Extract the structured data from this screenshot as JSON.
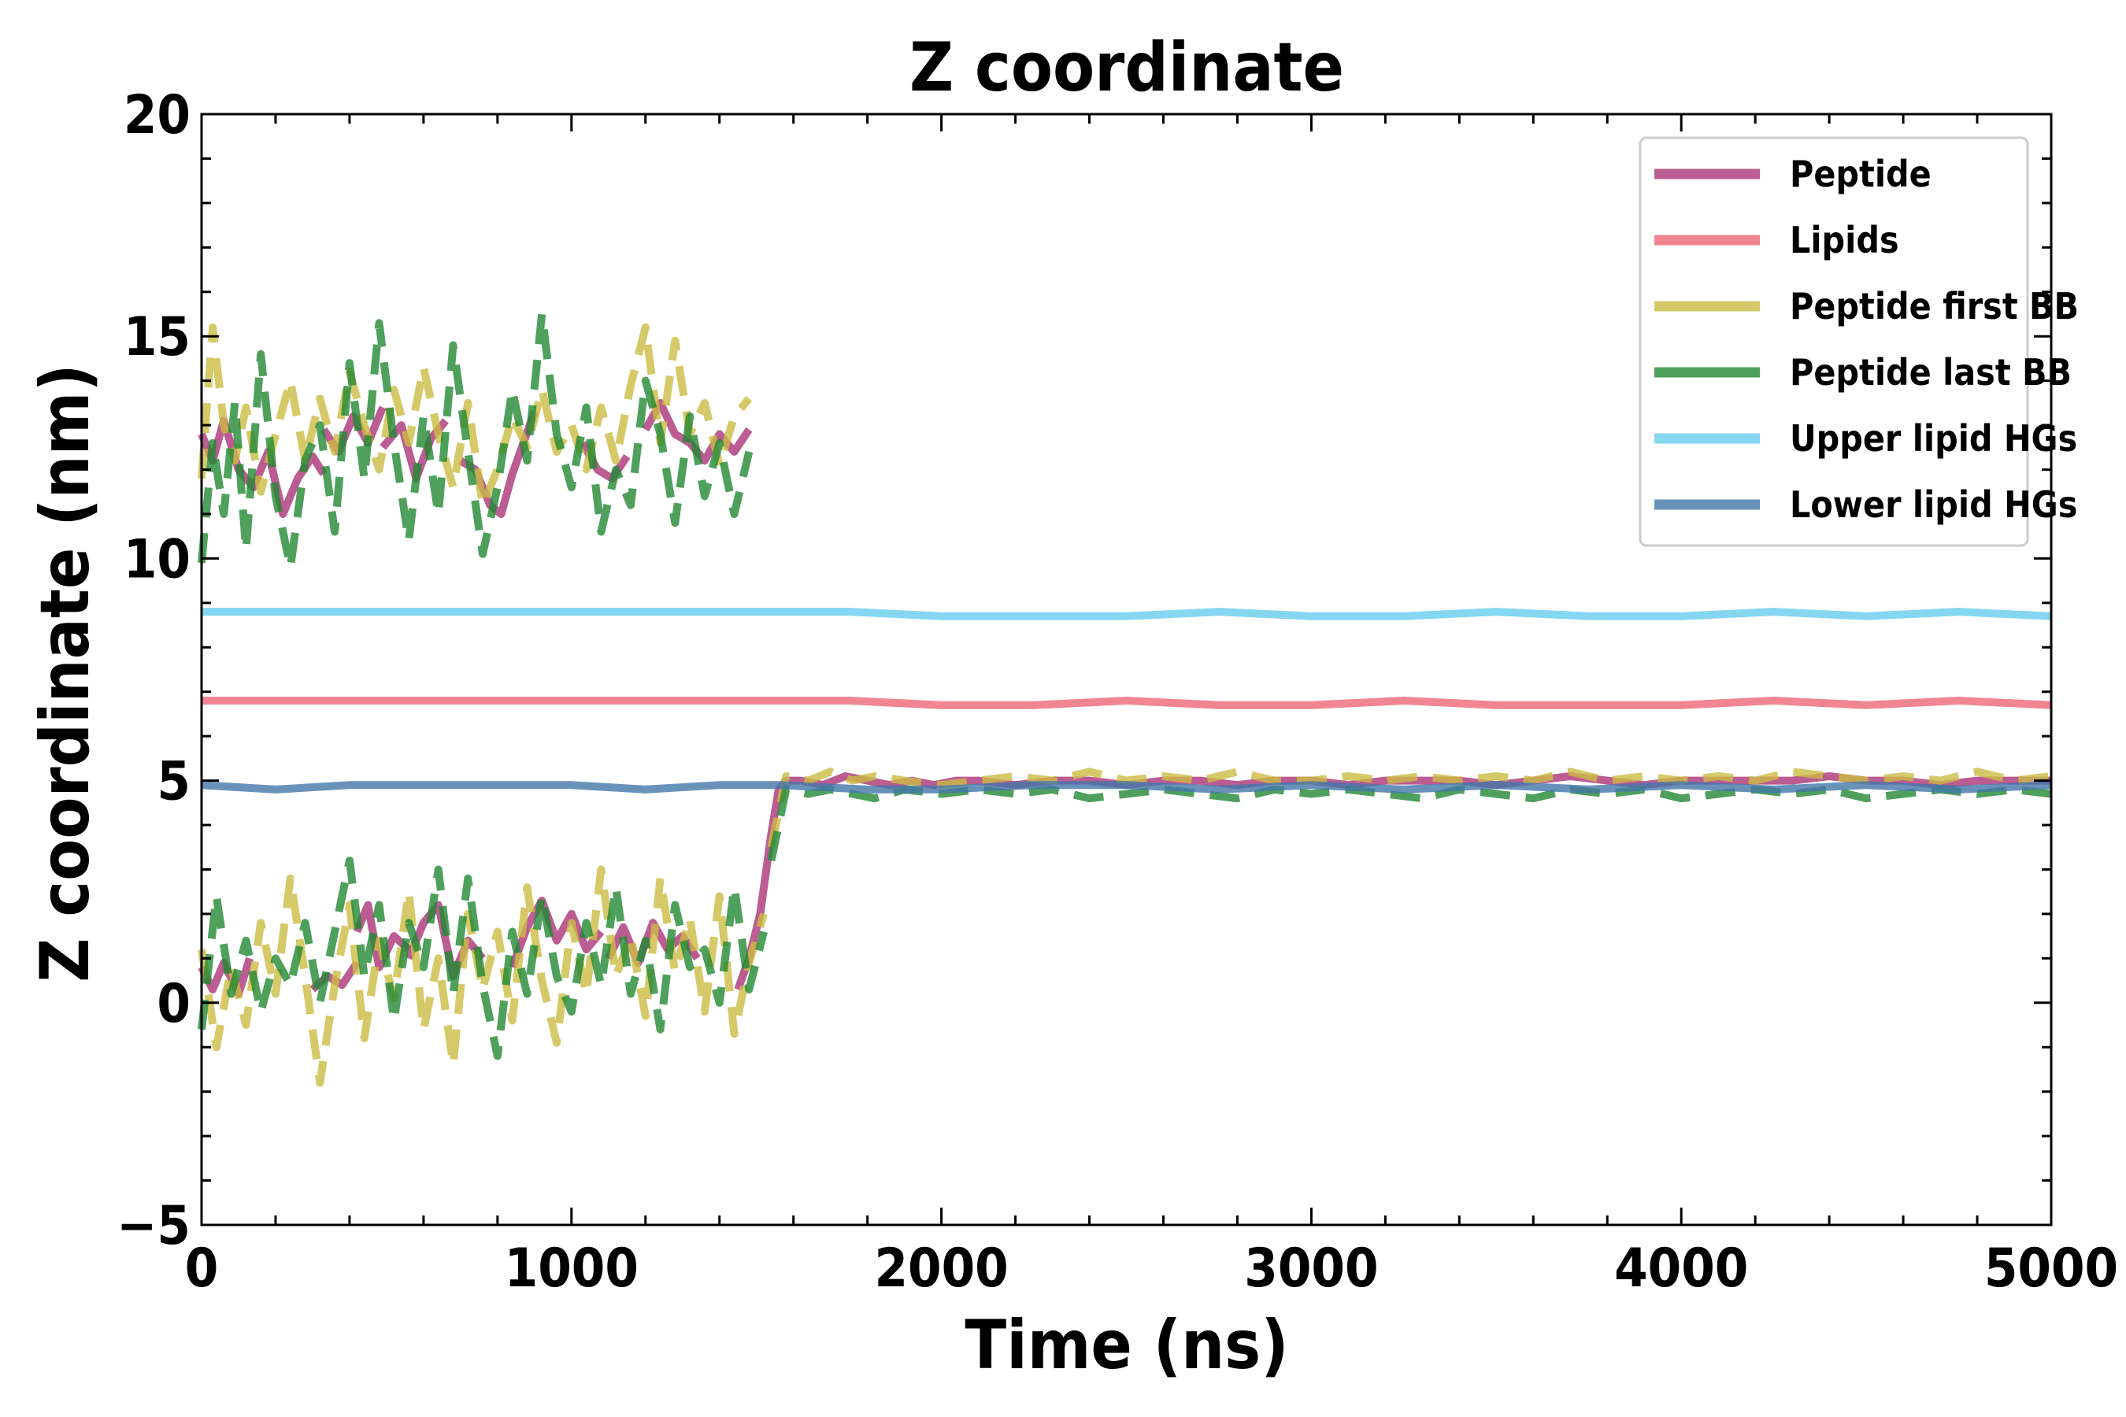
{
  "chart_data": {
    "type": "line",
    "title": "Z coordinate",
    "xlabel": "Time (ns)",
    "ylabel": "Z coordinate (nm)",
    "xlim": [
      0,
      5000
    ],
    "ylim": [
      -5,
      20
    ],
    "xticks": [
      0,
      1000,
      2000,
      3000,
      4000,
      5000
    ],
    "yticks": [
      -5,
      0,
      5,
      10,
      15,
      20
    ],
    "xtick_labels": [
      "0",
      "1000",
      "2000",
      "3000",
      "4000",
      "5000"
    ],
    "ytick_labels": [
      "−5",
      "0",
      "5",
      "10",
      "15",
      "20"
    ],
    "grid": false,
    "legend_position": "top-right",
    "series": [
      {
        "name": "Peptide",
        "color": "#aa3377",
        "style": "solid",
        "segments": [
          {
            "x": [
              0,
              30,
              60,
              100,
              140,
              180,
              220,
              260,
              300,
              330
            ],
            "y": [
              12.8,
              12.2,
              13.1,
              12.0,
              11.6,
              12.4,
              11.0,
              11.8,
              12.3,
              11.9
            ]
          },
          {
            "x": [
              330,
              370,
              410,
              450,
              490
            ],
            "y": [
              12.9,
              12.4,
              13.2,
              12.6,
              13.4
            ]
          },
          {
            "x": [
              490,
              540,
              580,
              620,
              660
            ],
            "y": [
              12.5,
              13.0,
              11.8,
              12.7,
              13.1
            ]
          },
          {
            "x": [
              700,
              740,
              780,
              810,
              840,
              870,
              900
            ],
            "y": [
              12.2,
              12.0,
              11.2,
              11.0,
              11.9,
              12.6,
              13.3
            ]
          },
          {
            "x": [
              1030,
              1070,
              1110,
              1150
            ],
            "y": [
              12.6,
              12.0,
              11.8,
              12.3
            ]
          },
          {
            "x": [
              1200,
              1240,
              1280,
              1320,
              1360,
              1400,
              1440,
              1480
            ],
            "y": [
              12.9,
              13.5,
              12.8,
              12.6,
              12.2,
              12.8,
              12.4,
              12.9
            ]
          },
          {
            "x": [
              0,
              30,
              60,
              100,
              130
            ],
            "y": [
              0.8,
              0.3,
              0.9,
              0.2,
              1.0
            ]
          },
          {
            "x": [
              300,
              340,
              380,
              420
            ],
            "y": [
              0.3,
              0.6,
              0.4,
              0.9
            ]
          },
          {
            "x": [
              420,
              450,
              480,
              520,
              560
            ],
            "y": [
              1.6,
              2.2,
              0.8,
              1.5,
              1.2
            ]
          },
          {
            "x": [
              560,
              600,
              640,
              680,
              720,
              760
            ],
            "y": [
              1.0,
              1.8,
              2.2,
              0.6,
              1.4,
              1.0
            ]
          },
          {
            "x": [
              840,
              880,
              920,
              960,
              1000,
              1040,
              1080
            ],
            "y": [
              0.8,
              1.7,
              2.3,
              1.4,
              2.0,
              1.2,
              1.6
            ]
          },
          {
            "x": [
              1100,
              1140,
              1180,
              1220,
              1260,
              1300,
              1340
            ],
            "y": [
              1.0,
              1.7,
              0.9,
              1.8,
              1.2,
              1.5,
              1.0
            ]
          },
          {
            "x": [
              1450,
              1480,
              1510,
              1540,
              1560,
              1580,
              1620,
              1680,
              1740,
              1800,
              1860,
              1920,
              1980,
              2040,
              2100,
              2200,
              2300,
              2400,
              2500,
              2600,
              2700,
              2800,
              2900,
              3000,
              3100,
              3200,
              3300,
              3400,
              3500,
              3600,
              3700,
              3800,
              3900,
              4000,
              4100,
              4200,
              4300,
              4400,
              4500,
              4600,
              4700,
              4800,
              4900,
              5000
            ],
            "y": [
              0.3,
              1.0,
              2.0,
              3.8,
              4.8,
              5.0,
              5.0,
              4.9,
              5.1,
              5.0,
              4.9,
              5.0,
              4.9,
              5.0,
              5.0,
              4.9,
              5.0,
              5.0,
              4.9,
              5.0,
              5.0,
              4.9,
              5.0,
              5.0,
              4.9,
              5.0,
              5.0,
              5.0,
              4.9,
              5.0,
              5.1,
              5.0,
              4.9,
              5.0,
              5.0,
              5.0,
              5.0,
              5.1,
              5.0,
              5.0,
              4.9,
              5.0,
              5.0,
              5.0
            ]
          }
        ]
      },
      {
        "name": "Lipids",
        "color": "#ee6677",
        "style": "solid",
        "segments": [
          {
            "x": [
              0,
              250,
              500,
              750,
              1000,
              1250,
              1500,
              1750,
              2000,
              2250,
              2500,
              2750,
              3000,
              3250,
              3500,
              3750,
              4000,
              4250,
              4500,
              4750,
              5000
            ],
            "y": [
              6.8,
              6.8,
              6.8,
              6.8,
              6.8,
              6.8,
              6.8,
              6.8,
              6.7,
              6.7,
              6.8,
              6.7,
              6.7,
              6.8,
              6.7,
              6.7,
              6.7,
              6.8,
              6.7,
              6.8,
              6.7
            ]
          }
        ]
      },
      {
        "name": "Peptide first BB",
        "color": "#ccbb44",
        "style": "dashed",
        "segments": [
          {
            "x": [
              0,
              30,
              60,
              90,
              120,
              160,
              200,
              240,
              280,
              320,
              360,
              400,
              440,
              480,
              520,
              560,
              600,
              640,
              680,
              720,
              760,
              800,
              840,
              880,
              920,
              960,
              1000,
              1040,
              1080,
              1120,
              1160,
              1200,
              1240,
              1280,
              1320,
              1360,
              1400,
              1440,
              1480
            ],
            "y": [
              11.8,
              15.2,
              13.0,
              12.2,
              13.4,
              11.5,
              12.8,
              14.0,
              12.2,
              13.6,
              12.4,
              14.2,
              13.0,
              12.0,
              13.8,
              12.6,
              14.3,
              12.8,
              11.6,
              13.5,
              11.2,
              12.0,
              13.2,
              12.5,
              13.8,
              12.4,
              13.0,
              12.0,
              13.4,
              12.2,
              13.9,
              15.2,
              12.6,
              14.9,
              12.8,
              13.5,
              12.1,
              13.2,
              13.6
            ]
          },
          {
            "x": [
              0,
              40,
              80,
              120,
              160,
              200,
              240,
              280,
              320,
              360,
              400,
              440,
              480,
              520,
              560,
              600,
              640,
              680,
              720,
              760,
              800,
              840,
              880,
              920,
              960,
              1000,
              1040,
              1080,
              1120,
              1160,
              1200,
              1240,
              1280,
              1320,
              1360,
              1400,
              1440,
              1480,
              1520
            ],
            "y": [
              1.2,
              -1.0,
              0.8,
              -0.5,
              1.8,
              0.2,
              2.8,
              0.6,
              -1.8,
              0.4,
              2.2,
              -0.8,
              1.4,
              0.1,
              2.5,
              -0.6,
              1.0,
              -1.4,
              2.0,
              0.3,
              1.6,
              -0.4,
              2.6,
              0.5,
              -0.9,
              1.8,
              0.2,
              3.0,
              0.6,
              1.5,
              -0.3,
              2.8,
              0.7,
              1.9,
              -0.2,
              2.4,
              -0.7,
              0.9,
              2.0
            ]
          },
          {
            "x": [
              1540,
              1580,
              1640,
              1700,
              1760,
              1820,
              1900,
              2000,
              2100,
              2200,
              2300,
              2400,
              2500,
              2600,
              2700,
              2800,
              2900,
              3000,
              3100,
              3200,
              3300,
              3400,
              3500,
              3600,
              3700,
              3800,
              3900,
              4000,
              4100,
              4200,
              4300,
              4400,
              4500,
              4600,
              4700,
              4800,
              4900,
              5000
            ],
            "y": [
              3.5,
              5.1,
              5.0,
              5.2,
              5.0,
              5.1,
              5.0,
              4.9,
              5.0,
              5.1,
              5.0,
              5.2,
              5.0,
              5.1,
              5.0,
              5.2,
              5.0,
              5.0,
              5.1,
              5.0,
              5.1,
              5.0,
              5.1,
              5.0,
              5.2,
              5.0,
              5.1,
              5.0,
              5.1,
              5.0,
              5.2,
              5.1,
              5.0,
              5.1,
              5.0,
              5.2,
              5.0,
              5.1
            ]
          }
        ]
      },
      {
        "name": "Peptide last BB",
        "color": "#228833",
        "style": "dashed",
        "segments": [
          {
            "x": [
              0,
              30,
              60,
              90,
              120,
              160,
              200,
              240,
              280,
              320,
              360,
              400,
              440,
              480,
              520,
              560,
              600,
              640,
              680,
              720,
              760,
              800,
              840,
              880,
              920,
              960,
              1000,
              1040,
              1080,
              1120,
              1160,
              1200,
              1240,
              1280,
              1320,
              1360,
              1400,
              1440,
              1480
            ],
            "y": [
              9.9,
              12.6,
              11.0,
              13.5,
              10.2,
              14.6,
              11.4,
              9.8,
              12.2,
              13.0,
              10.6,
              14.4,
              11.8,
              15.3,
              12.6,
              10.4,
              13.2,
              11.0,
              14.8,
              12.4,
              10.1,
              11.6,
              13.8,
              12.2,
              15.5,
              12.8,
              11.6,
              13.4,
              10.6,
              12.0,
              11.2,
              14.0,
              12.8,
              10.8,
              13.2,
              11.4,
              12.6,
              11.0,
              12.4
            ]
          },
          {
            "x": [
              0,
              40,
              80,
              120,
              160,
              200,
              240,
              280,
              320,
              360,
              400,
              440,
              480,
              520,
              560,
              600,
              640,
              680,
              720,
              760,
              800,
              840,
              880,
              920,
              960,
              1000,
              1040,
              1080,
              1120,
              1160,
              1200,
              1240,
              1280,
              1320,
              1360,
              1400,
              1440,
              1480,
              1520
            ],
            "y": [
              -0.6,
              2.4,
              0.2,
              1.4,
              -0.2,
              1.0,
              0.4,
              1.8,
              0.0,
              1.6,
              3.2,
              0.6,
              2.2,
              -0.4,
              1.8,
              0.8,
              3.0,
              0.2,
              2.8,
              0.4,
              -1.2,
              1.6,
              0.2,
              2.4,
              0.6,
              -0.2,
              1.8,
              0.4,
              2.6,
              0.2,
              1.4,
              -0.6,
              2.2,
              0.8,
              1.2,
              0.0,
              2.6,
              0.3,
              1.6
            ]
          },
          {
            "x": [
              1540,
              1580,
              1640,
              1700,
              1760,
              1820,
              1900,
              2000,
              2100,
              2200,
              2300,
              2400,
              2500,
              2600,
              2700,
              2800,
              2900,
              3000,
              3100,
              3200,
              3300,
              3400,
              3500,
              3600,
              3700,
              3800,
              3900,
              4000,
              4100,
              4200,
              4300,
              4400,
              4500,
              4600,
              4700,
              4800,
              4900,
              5000
            ],
            "y": [
              3.2,
              4.8,
              4.7,
              4.8,
              4.7,
              4.6,
              4.8,
              4.7,
              4.8,
              4.7,
              4.8,
              4.6,
              4.7,
              4.8,
              4.7,
              4.6,
              4.8,
              4.7,
              4.8,
              4.7,
              4.6,
              4.8,
              4.7,
              4.6,
              4.8,
              4.7,
              4.8,
              4.6,
              4.7,
              4.8,
              4.7,
              4.8,
              4.6,
              4.7,
              4.8,
              4.7,
              4.8,
              4.7
            ]
          }
        ]
      },
      {
        "name": "Upper lipid HGs",
        "color": "#66ccee",
        "style": "solid",
        "segments": [
          {
            "x": [
              0,
              250,
              500,
              750,
              1000,
              1250,
              1500,
              1750,
              2000,
              2250,
              2500,
              2750,
              3000,
              3250,
              3500,
              3750,
              4000,
              4250,
              4500,
              4750,
              5000
            ],
            "y": [
              8.8,
              8.8,
              8.8,
              8.8,
              8.8,
              8.8,
              8.8,
              8.8,
              8.7,
              8.7,
              8.7,
              8.8,
              8.7,
              8.7,
              8.8,
              8.7,
              8.7,
              8.8,
              8.7,
              8.8,
              8.7
            ]
          }
        ]
      },
      {
        "name": "Lower lipid HGs",
        "color": "#4477aa",
        "style": "solid",
        "segments": [
          {
            "x": [
              0,
              200,
              400,
              600,
              800,
              1000,
              1200,
              1400,
              1560,
              1800,
              2000,
              2250,
              2500,
              2750,
              3000,
              3250,
              3500,
              3750,
              4000,
              4250,
              4500,
              4750,
              5000
            ],
            "y": [
              4.9,
              4.8,
              4.9,
              4.9,
              4.9,
              4.9,
              4.8,
              4.9,
              4.9,
              4.8,
              4.8,
              4.9,
              4.9,
              4.8,
              4.9,
              4.8,
              4.9,
              4.8,
              4.9,
              4.8,
              4.9,
              4.8,
              4.9
            ]
          }
        ]
      }
    ]
  }
}
